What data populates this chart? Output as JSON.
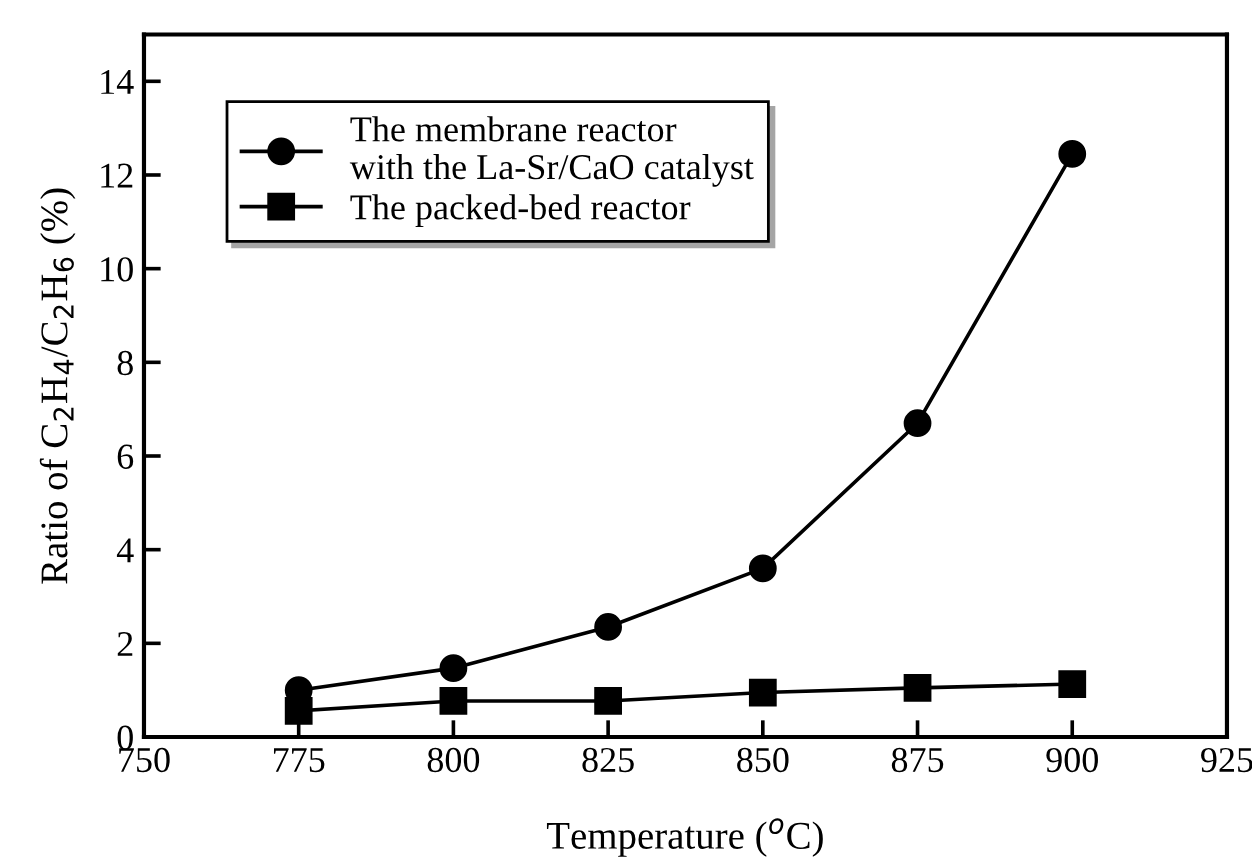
{
  "chart_data": {
    "type": "line",
    "xlabel": "Temperature ($^{o}$C)",
    "ylabel": "Ratio of C$_{2}$H$_{4}$/C$_{2}$H$_{6}$ (%)",
    "x": [
      775,
      800,
      825,
      850,
      875,
      900
    ],
    "series": [
      {
        "name": "The membrane reactor\nwith the La-Sr/CaO catalyst",
        "color": "#000000",
        "marker": "circle",
        "values": [
          1.0,
          1.47,
          2.35,
          3.6,
          6.7,
          12.45
        ]
      },
      {
        "name": "The packed-bed reactor",
        "color": "#000000",
        "marker": "square",
        "values": [
          0.56,
          0.77,
          0.77,
          0.95,
          1.05,
          1.13
        ]
      }
    ],
    "xlim": [
      750,
      925
    ],
    "xticks": [
      750,
      775,
      800,
      825,
      850,
      875,
      900,
      925
    ],
    "ylim": [
      0,
      15
    ],
    "yticks": [
      0,
      2,
      4,
      6,
      8,
      10,
      12,
      14
    ],
    "grid": false,
    "legend": "top left",
    "line_style": "solid"
  }
}
